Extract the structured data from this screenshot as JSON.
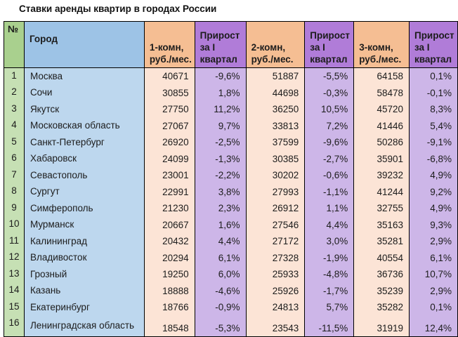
{
  "title": "Ставки аренды квартир в городах России",
  "table": {
    "columns": [
      {
        "key": "num",
        "label": "№"
      },
      {
        "key": "city",
        "label": "Город"
      },
      {
        "key": "rent1",
        "label": "1-комн,\nруб./мес."
      },
      {
        "key": "growth1",
        "label": "Прирост\nза I\nквартал"
      },
      {
        "key": "rent2",
        "label": "2-комн,\nруб./мес."
      },
      {
        "key": "growth2",
        "label": "Прирост\nза I\nквартал"
      },
      {
        "key": "rent3",
        "label": "3-комн,\nруб./мес."
      },
      {
        "key": "growth3",
        "label": "Прирост\nза I\nквартал"
      }
    ],
    "rows": [
      [
        "1",
        "Москва",
        "40671",
        "-9,6%",
        "51887",
        "-5,5%",
        "64158",
        "0,1%"
      ],
      [
        "2",
        "Сочи",
        "30855",
        "1,8%",
        "44698",
        "-0,3%",
        "58478",
        "-0,1%"
      ],
      [
        "3",
        "Якутск",
        "27750",
        "11,2%",
        "36250",
        "10,5%",
        "45720",
        "8,3%"
      ],
      [
        "4",
        "Московская область",
        "27067",
        "9,7%",
        "33813",
        "7,2%",
        "41446",
        "5,4%"
      ],
      [
        "5",
        "Санкт-Петербург",
        "26920",
        "-2,5%",
        "37599",
        "-9,6%",
        "50286",
        "-9,1%"
      ],
      [
        "6",
        "Хабаровск",
        "24099",
        "-1,3%",
        "30385",
        "-2,7%",
        "35901",
        "-6,8%"
      ],
      [
        "7",
        "Севастополь",
        "23001",
        "-2,2%",
        "30202",
        "-0,6%",
        "39232",
        "4,9%"
      ],
      [
        "8",
        "Сургут",
        "22991",
        "3,8%",
        "27993",
        "-1,1%",
        "41244",
        "9,2%"
      ],
      [
        "9",
        "Симферополь",
        "21230",
        "2,3%",
        "26912",
        "1,1%",
        "32755",
        "4,9%"
      ],
      [
        "10",
        "Мурманск",
        "20667",
        "1,6%",
        "27546",
        "4,4%",
        "35163",
        "9,3%"
      ],
      [
        "11",
        "Калининград",
        "20432",
        "4,4%",
        "27172",
        "3,0%",
        "35281",
        "2,9%"
      ],
      [
        "12",
        "Владивосток",
        "20294",
        "6,1%",
        "27328",
        "-1,9%",
        "40554",
        "6,1%"
      ],
      [
        "13",
        "Грозный",
        "19250",
        "6,0%",
        "25933",
        "-4,8%",
        "36736",
        "10,7%"
      ],
      [
        "14",
        "Казань",
        "18888",
        "-4,6%",
        "25926",
        "-1,7%",
        "35239",
        "2,9%"
      ],
      [
        "15",
        "Екатеринбург",
        "18766",
        "-0,9%",
        "24813",
        "5,7%",
        "35282",
        "0,1%"
      ],
      [
        "16",
        "Ленинградская область",
        "18548",
        "-5,3%",
        "23543",
        "-11,5%",
        "31919",
        "12,4%"
      ]
    ]
  },
  "colors": {
    "header_green": "#A9D08E",
    "header_blue": "#9DC3E6",
    "header_orange": "#F5BE93",
    "header_purple": "#B07CD8",
    "cell_green": "#C6E0B4",
    "cell_blue": "#BDD7EE",
    "cell_orange": "#FCE4D6",
    "cell_purple": "#CDB6E8",
    "border": "#000000"
  }
}
